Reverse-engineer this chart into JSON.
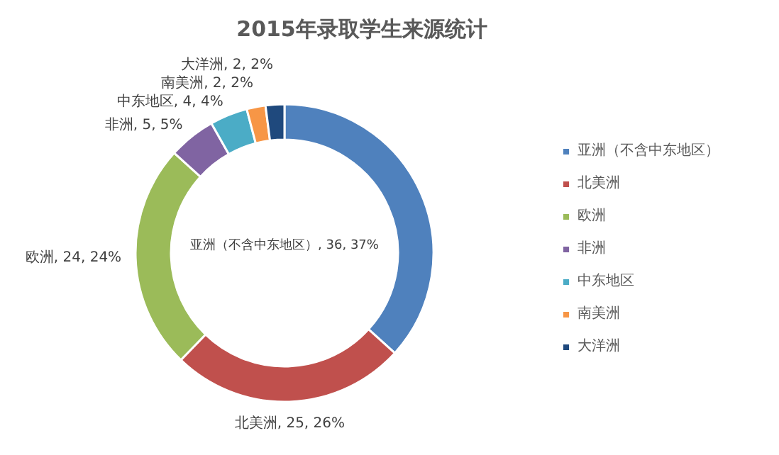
{
  "chart_data": {
    "type": "donut",
    "title": "2015年录取学生来源统计",
    "categories": [
      "亚洲（不含中东地区）",
      "北美洲",
      "欧洲",
      "非洲",
      "中东地区",
      "南美洲",
      "大洋洲"
    ],
    "values": [
      36,
      25,
      24,
      5,
      4,
      2,
      2
    ],
    "value_labels": [
      "亚洲（不含中东地区）, 36, 37%",
      "北美洲, 25, 26%",
      "欧洲, 24, 24%",
      "非洲, 5, 5%",
      "中东地区, 4, 4%",
      "南美洲, 2, 2%",
      "大洋洲, 2, 2%"
    ],
    "colors": [
      "#4f81bd",
      "#c0504d",
      "#9bbb59",
      "#8064a2",
      "#4bacc6",
      "#f79646",
      "#1f497d"
    ],
    "legend": "right"
  }
}
